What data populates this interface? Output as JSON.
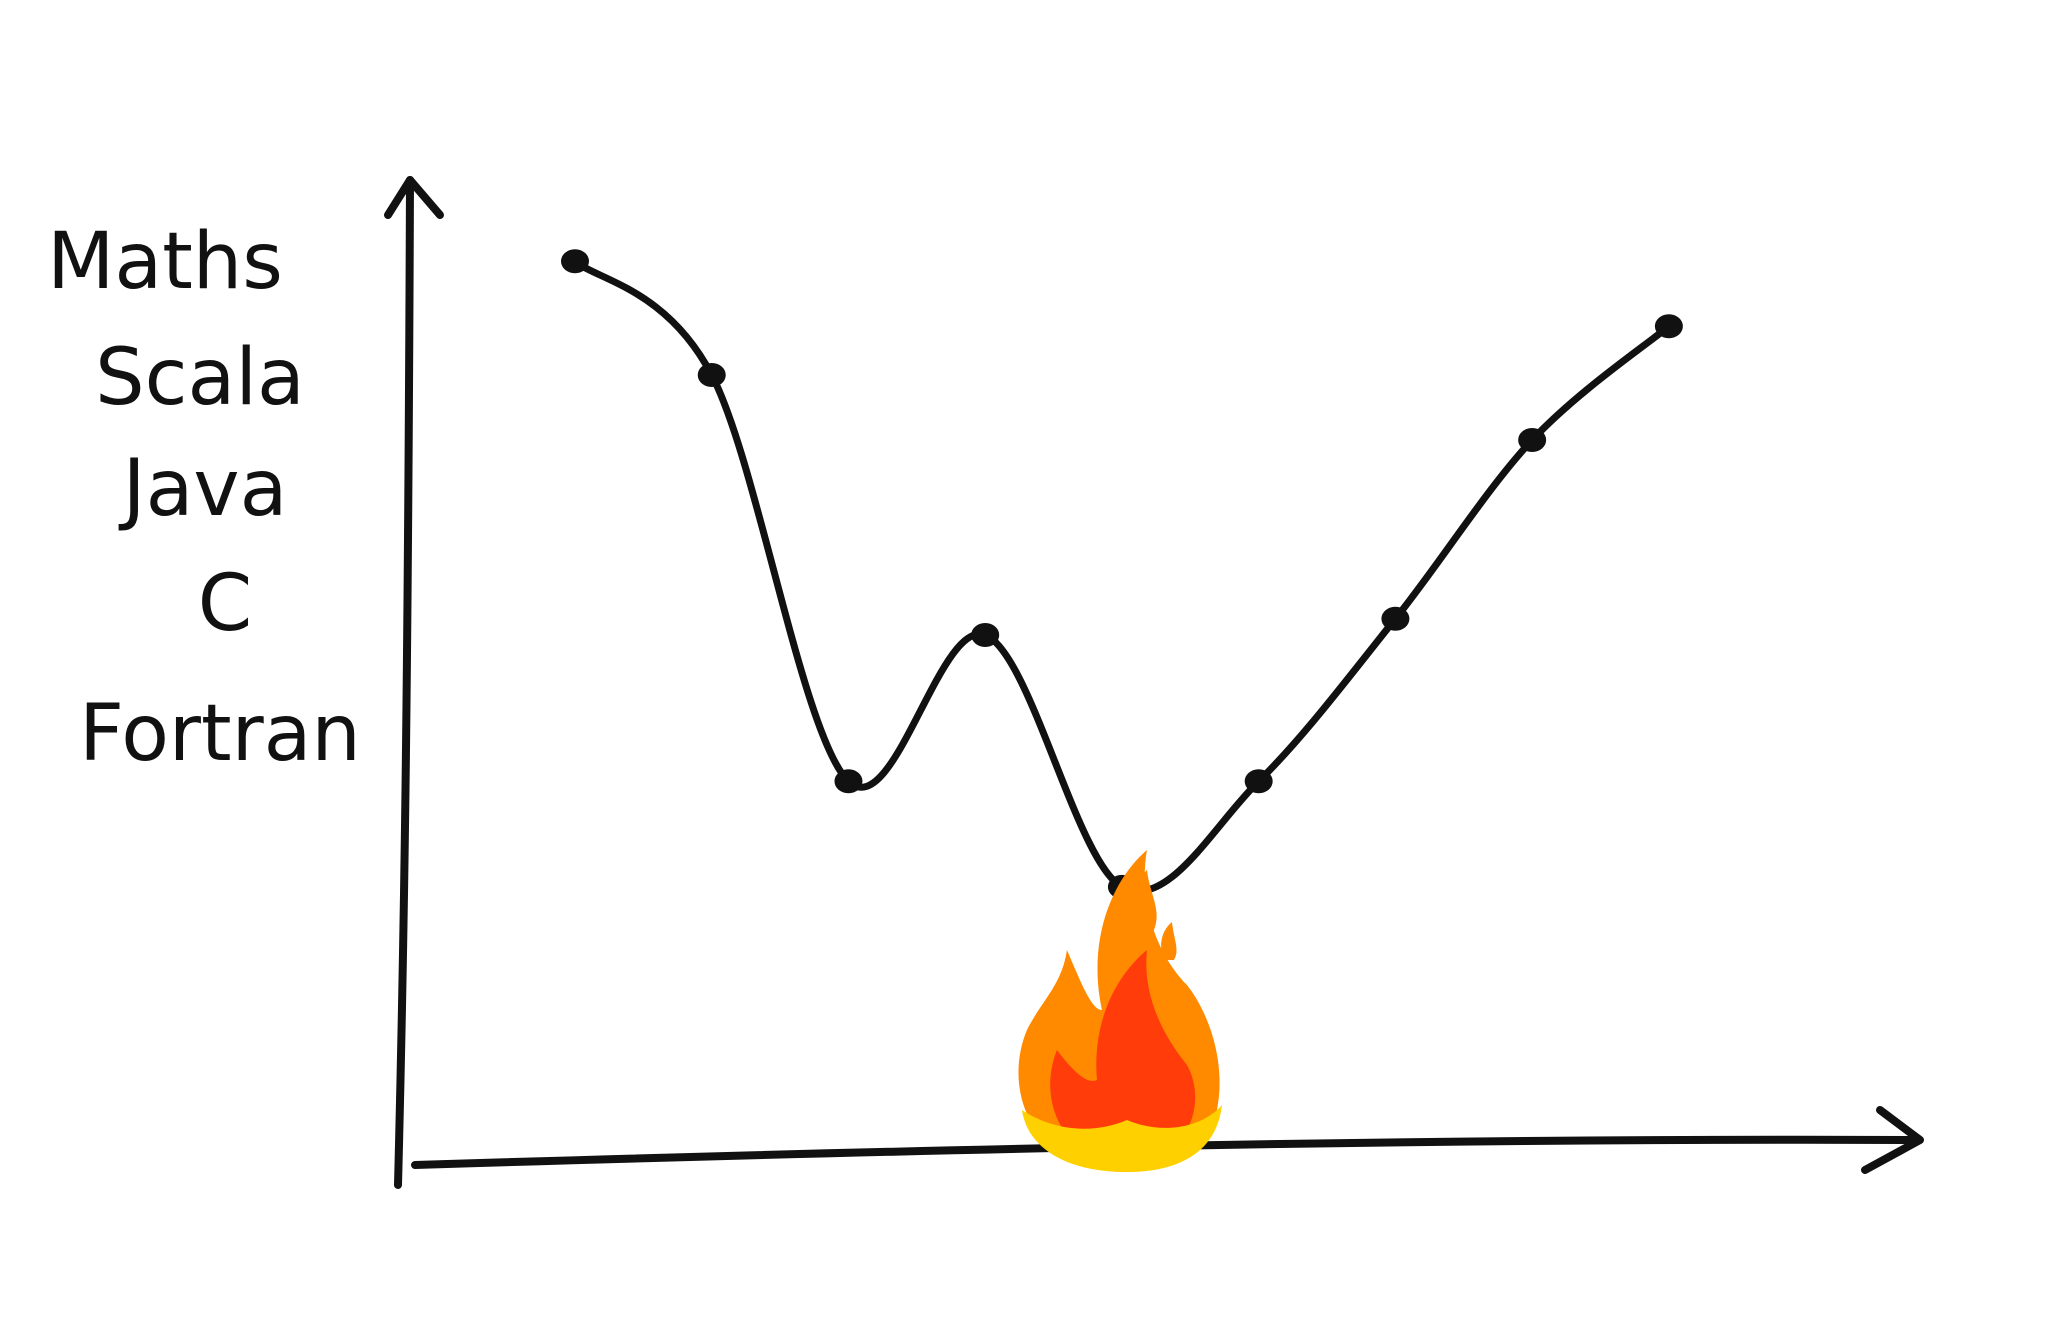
{
  "chart_data": {
    "type": "line",
    "title": "",
    "xlabel": "",
    "ylabel": "",
    "y_categories": [
      "Maths",
      "Scala",
      "Java",
      "C",
      "Fortran"
    ],
    "ylim": [
      0,
      6
    ],
    "xlim": [
      0,
      9.8
    ],
    "grid": false,
    "legend": "none",
    "series": [
      {
        "x": [
          0,
          1,
          2,
          3,
          4,
          5,
          6,
          7,
          8
        ],
        "y": [
          5.5,
          4.8,
          2.3,
          3.2,
          1.65,
          2.3,
          3.3,
          4.4,
          5.1
        ]
      }
    ],
    "annotations": [
      {
        "type": "fire",
        "x": 4
      }
    ],
    "colors": {
      "ink": "#111111",
      "flame_outer": "#ff8a00",
      "flame_mid": "#ff3c0a",
      "flame_inner": "#ffd000"
    }
  }
}
